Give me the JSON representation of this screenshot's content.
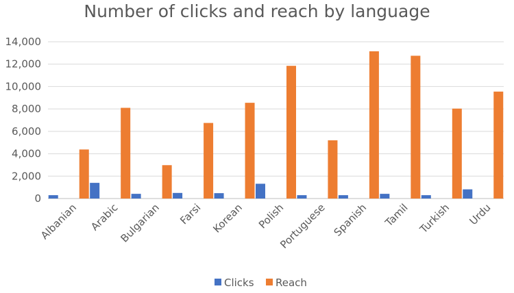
{
  "chart_data": {
    "type": "bar",
    "title": "Number of clicks and reach by language",
    "xlabel": "",
    "ylabel": "",
    "categories": [
      "Albanian",
      "Arabic",
      "Bulgarian",
      "Farsi",
      "Korean",
      "Polish",
      "Portuguese",
      "Spanish",
      "Tamil",
      "Turkish",
      "Urdu"
    ],
    "series": [
      {
        "name": "Clicks",
        "color": "#4472C4",
        "values": [
          300,
          1400,
          420,
          500,
          480,
          1320,
          300,
          300,
          420,
          300,
          820
        ]
      },
      {
        "name": "Reach",
        "color": "#ED7D31",
        "values": [
          4380,
          8100,
          2980,
          6750,
          8550,
          11850,
          5200,
          13150,
          12750,
          8030,
          9550
        ]
      }
    ],
    "ylim": [
      0,
      14000
    ],
    "yticks": [
      0,
      2000,
      4000,
      6000,
      8000,
      10000,
      12000,
      14000
    ],
    "ytick_labels": [
      "0",
      "2,000",
      "4,000",
      "6,000",
      "8,000",
      "10,000",
      "12,000",
      "14,000"
    ],
    "grid": true,
    "legend_position": "bottom"
  }
}
